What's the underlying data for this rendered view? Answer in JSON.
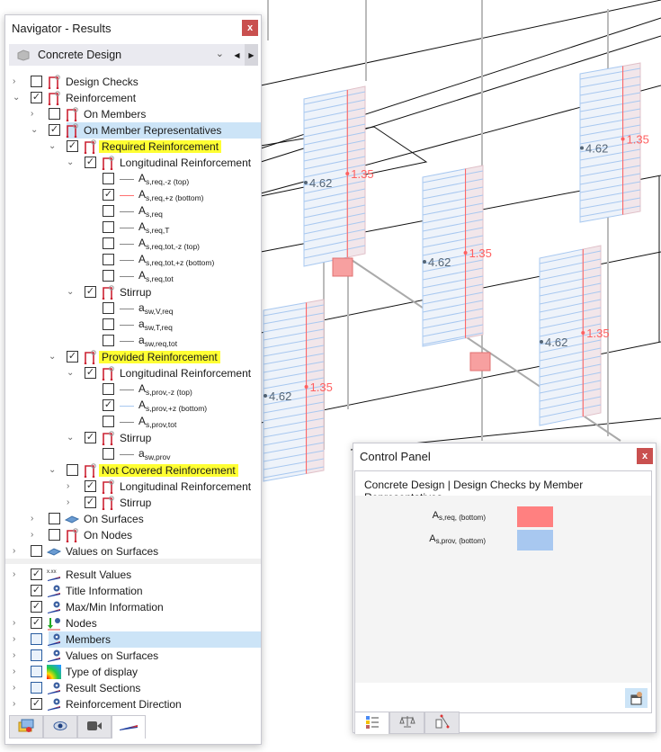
{
  "viewport": {
    "left_value": "4.62",
    "right_value": "1.35",
    "req_color": "#ff8080",
    "prov_color": "#a8c8f0"
  },
  "navigator": {
    "title": "Navigator - Results",
    "close_label": "x",
    "module": "Concrete Design",
    "tree": [
      {
        "level": 0,
        "expander": "collapsed",
        "checked": false,
        "icon": "member-icon",
        "label": "Design Checks"
      },
      {
        "level": 0,
        "expander": "expanded",
        "checked": true,
        "icon": "member-icon",
        "label": "Reinforcement"
      },
      {
        "level": 1,
        "expander": "collapsed",
        "checked": false,
        "icon": "member-icon",
        "label": "On Members"
      },
      {
        "level": 1,
        "expander": "expanded",
        "checked": true,
        "icon": "member-icon",
        "label": "On Member Representatives",
        "selected": true
      },
      {
        "level": 2,
        "expander": "expanded",
        "checked": true,
        "icon": "member-icon",
        "label": "Required Reinforcement",
        "highlight": true
      },
      {
        "level": 3,
        "expander": "expanded",
        "checked": true,
        "icon": "member-icon",
        "label": "Longitudinal Reinforcement"
      },
      {
        "level": 4,
        "checked": false,
        "line": "#888888",
        "sym": "A",
        "sub": "s,req,-z (top)"
      },
      {
        "level": 4,
        "checked": true,
        "line": "#ff7070",
        "sym": "A",
        "sub": "s,req,+z (bottom)"
      },
      {
        "level": 4,
        "checked": false,
        "line": "#888888",
        "sym": "A",
        "sub": "s,req"
      },
      {
        "level": 4,
        "checked": false,
        "line": "#888888",
        "sym": "A",
        "sub": "s,req,T"
      },
      {
        "level": 4,
        "checked": false,
        "line": "#888888",
        "sym": "A",
        "sub": "s,req,tot,-z (top)"
      },
      {
        "level": 4,
        "checked": false,
        "line": "#888888",
        "sym": "A",
        "sub": "s,req,tot,+z (bottom)"
      },
      {
        "level": 4,
        "checked": false,
        "line": "#888888",
        "sym": "A",
        "sub": "s,req,tot"
      },
      {
        "level": 3,
        "expander": "expanded",
        "checked": true,
        "icon": "member-icon",
        "label": "Stirrup"
      },
      {
        "level": 4,
        "checked": false,
        "line": "#888888",
        "sym": "a",
        "sub": "sw,V,req"
      },
      {
        "level": 4,
        "checked": false,
        "line": "#888888",
        "sym": "a",
        "sub": "sw,T,req"
      },
      {
        "level": 4,
        "checked": false,
        "line": "#888888",
        "sym": "a",
        "sub": "sw,req,tot"
      },
      {
        "level": 2,
        "expander": "expanded",
        "checked": true,
        "icon": "member-icon",
        "label": "Provided Reinforcement",
        "highlight": true
      },
      {
        "level": 3,
        "expander": "expanded",
        "checked": true,
        "icon": "member-icon",
        "label": "Longitudinal Reinforcement"
      },
      {
        "level": 4,
        "checked": false,
        "line": "#888888",
        "sym": "A",
        "sub": "s,prov,-z (top)"
      },
      {
        "level": 4,
        "checked": true,
        "line": "#a8c8f0",
        "sym": "A",
        "sub": "s,prov,+z (bottom)"
      },
      {
        "level": 4,
        "checked": false,
        "line": "#888888",
        "sym": "A",
        "sub": "s,prov,tot"
      },
      {
        "level": 3,
        "expander": "expanded",
        "checked": true,
        "icon": "member-icon",
        "label": "Stirrup"
      },
      {
        "level": 4,
        "checked": false,
        "line": "#888888",
        "sym": "a",
        "sub": "sw,prov"
      },
      {
        "level": 2,
        "expander": "expanded",
        "checked": false,
        "icon": "member-icon",
        "label": "Not Covered Reinforcement",
        "highlight": true
      },
      {
        "level": 3,
        "expander": "collapsed",
        "checked": true,
        "icon": "member-icon",
        "label": "Longitudinal Reinforcement"
      },
      {
        "level": 3,
        "expander": "collapsed",
        "checked": true,
        "icon": "member-icon",
        "label": "Stirrup"
      },
      {
        "level": 1,
        "expander": "collapsed",
        "checked": false,
        "icon": "surface-icon",
        "label": "On Surfaces"
      },
      {
        "level": 1,
        "expander": "collapsed",
        "checked": false,
        "icon": "member-icon",
        "label": "On Nodes"
      },
      {
        "level": 0,
        "expander": "collapsed",
        "checked": false,
        "icon": "surface-icon",
        "label": "Values on Surfaces"
      }
    ],
    "display_tree": [
      {
        "level": 0,
        "expander": "collapsed",
        "checked": true,
        "icon": "result-values-icon",
        "label": "Result Values"
      },
      {
        "level": 0,
        "checked": true,
        "icon": "display-eye-icon",
        "label": "Title Information"
      },
      {
        "level": 0,
        "checked": true,
        "icon": "display-eye-icon",
        "label": "Max/Min Information"
      },
      {
        "level": 0,
        "expander": "collapsed",
        "checked": true,
        "icon": "nodes-icon",
        "label": "Nodes"
      },
      {
        "level": 0,
        "expander": "collapsed",
        "checked": false,
        "partial": true,
        "icon": "display-eye-icon",
        "label": "Members",
        "selected": true
      },
      {
        "level": 0,
        "expander": "collapsed",
        "checked": false,
        "partial": true,
        "icon": "display-eye-icon",
        "label": "Values on Surfaces"
      },
      {
        "level": 0,
        "expander": "collapsed",
        "checked": false,
        "partial": true,
        "icon": "color-scale-icon",
        "label": "Type of display"
      },
      {
        "level": 0,
        "expander": "collapsed",
        "checked": false,
        "partial": true,
        "icon": "display-eye-icon",
        "label": "Result Sections"
      },
      {
        "level": 0,
        "expander": "collapsed",
        "checked": true,
        "icon": "display-eye-icon",
        "label": "Reinforcement Direction"
      }
    ],
    "tabs": [
      {
        "icon": "data-icon"
      },
      {
        "icon": "view-eye-icon"
      },
      {
        "icon": "camera-icon"
      },
      {
        "icon": "results-icon",
        "active": true
      }
    ]
  },
  "control_panel": {
    "title": "Control Panel",
    "close_label": "x",
    "header": "Concrete Design | Design Checks by Member Representatives",
    "legend": [
      {
        "sym": "A",
        "sub": "s,req, (bottom)",
        "color": "#ff8080"
      },
      {
        "sym": "A",
        "sub": "s,prov, (bottom)",
        "color": "#a8c8f0"
      }
    ],
    "tabs": [
      {
        "icon": "color-legend-icon",
        "active": true
      },
      {
        "icon": "balance-icon"
      },
      {
        "icon": "settings-icon"
      }
    ]
  }
}
